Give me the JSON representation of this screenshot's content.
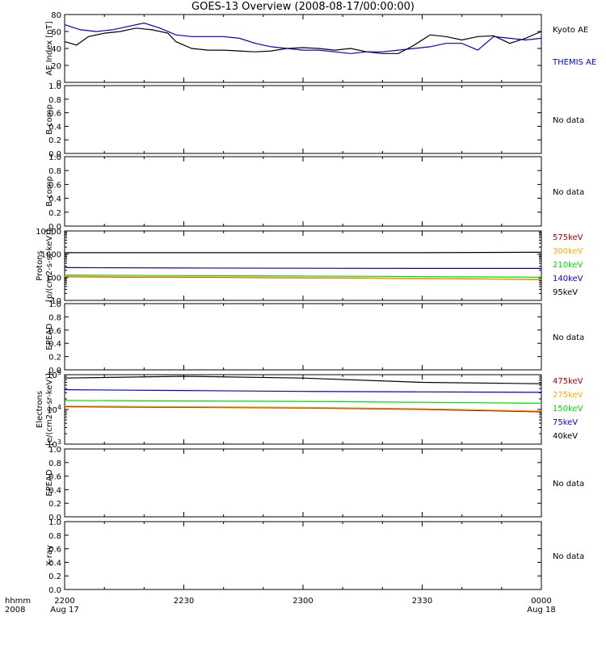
{
  "title": "GOES-13 Overview (2008-08-17/00:00:00)",
  "colors": {
    "black": "#000000",
    "blue": "#0000dd",
    "green": "#00dd00",
    "orange": "#ffaa00",
    "red": "#aa0000",
    "frame": "#000000"
  },
  "x_axis": {
    "header_left_1": "hhmm",
    "header_left_2": "2008",
    "ticks": [
      {
        "label": "2200",
        "sub": "Aug 17",
        "t": 0
      },
      {
        "label": "2230",
        "sub": "",
        "t": 30
      },
      {
        "label": "2300",
        "sub": "",
        "t": 60
      },
      {
        "label": "2330",
        "sub": "",
        "t": 90
      },
      {
        "label": "0000",
        "sub": "Aug 18",
        "t": 120
      }
    ]
  },
  "chart_data": [
    {
      "type": "line",
      "panel": "ae",
      "ylabel": "AE Index [nT]",
      "ylim": [
        0,
        80
      ],
      "yticks": [
        "0",
        "20",
        "40",
        "60",
        "80"
      ],
      "x_unit": "minutes after 2200",
      "series": [
        {
          "name": "Kyoto AE",
          "color": "#000000",
          "x": [
            0,
            3,
            6,
            10,
            14,
            18,
            22,
            26,
            28,
            32,
            36,
            40,
            44,
            48,
            52,
            56,
            60,
            64,
            68,
            72,
            76,
            80,
            84,
            88,
            92,
            96,
            100,
            104,
            108,
            112,
            116,
            120
          ],
          "y": [
            48,
            44,
            54,
            58,
            60,
            64,
            62,
            58,
            48,
            40,
            38,
            38,
            37,
            36,
            37,
            40,
            41,
            40,
            38,
            40,
            36,
            34,
            34,
            44,
            56,
            54,
            50,
            54,
            55,
            46,
            52,
            60
          ]
        },
        {
          "name": "THEMIS AE",
          "color": "#0000dd",
          "x": [
            0,
            4,
            8,
            12,
            16,
            20,
            24,
            28,
            32,
            36,
            40,
            44,
            48,
            52,
            56,
            60,
            64,
            68,
            72,
            76,
            80,
            84,
            88,
            92,
            96,
            100,
            104,
            108,
            112,
            116,
            120
          ],
          "y": [
            68,
            62,
            60,
            62,
            66,
            70,
            64,
            56,
            54,
            54,
            54,
            52,
            46,
            42,
            40,
            38,
            38,
            36,
            34,
            36,
            36,
            38,
            40,
            42,
            46,
            46,
            38,
            54,
            52,
            50,
            52
          ]
        }
      ]
    },
    {
      "type": "line",
      "panel": "b1",
      "ylabel": "B comp",
      "ylim": [
        0,
        1
      ],
      "yticks": [
        "0.0",
        "0.2",
        "0.4",
        "0.6",
        "0.8",
        "1.0"
      ],
      "note": "No data",
      "series": []
    },
    {
      "type": "line",
      "panel": "b2",
      "ylabel": "B comp",
      "ylim": [
        0,
        1
      ],
      "yticks": [
        "0.0",
        "0.2",
        "0.4",
        "0.6",
        "0.8",
        "1.0"
      ],
      "note": "No data",
      "series": []
    },
    {
      "type": "line",
      "panel": "protons",
      "ylabel": "Protons",
      "ylabel2": "[p/(cm2-s-sr-keV)]",
      "yscale": "log",
      "ylim": [
        10,
        10000
      ],
      "yticks": [
        "10",
        "100",
        "1000",
        "10000"
      ],
      "series": [
        {
          "name": "575keV",
          "color": "#aa0000",
          "x": [
            0,
            30,
            60,
            90,
            120
          ],
          "y": [
            105,
            100,
            95,
            88,
            80
          ]
        },
        {
          "name": "300keV",
          "color": "#ffaa00",
          "x": [
            0,
            30,
            60,
            90,
            120
          ],
          "y": [
            110,
            104,
            98,
            90,
            82
          ]
        },
        {
          "name": "210keV",
          "color": "#00dd00",
          "x": [
            0,
            30,
            60,
            90,
            120
          ],
          "y": [
            125,
            118,
            112,
            106,
            100
          ]
        },
        {
          "name": "140keV",
          "color": "#0000dd",
          "x": [
            0,
            30,
            60,
            90,
            120
          ],
          "y": [
            260,
            250,
            245,
            240,
            240
          ]
        },
        {
          "name": "95keV",
          "color": "#000000",
          "x": [
            0,
            30,
            60,
            90,
            120
          ],
          "y": [
            1150,
            1150,
            1150,
            1150,
            1200
          ]
        }
      ]
    },
    {
      "type": "line",
      "panel": "epead1",
      "ylabel": "EPEAD",
      "ylim": [
        0,
        1
      ],
      "yticks": [
        "0.0",
        "0.2",
        "0.4",
        "0.6",
        "0.8",
        "1.0"
      ],
      "note": "No data",
      "series": []
    },
    {
      "type": "line",
      "panel": "electrons",
      "ylabel": "Electrons",
      "ylabel2": "[e/(cm2-s-sr-keV)]",
      "yscale": "log",
      "ylim": [
        1000,
        100000
      ],
      "yticks": [
        "10^3",
        "10^4",
        "10^5"
      ],
      "series": [
        {
          "name": "475keV",
          "color": "#aa0000",
          "x": [
            0,
            30,
            60,
            90,
            120
          ],
          "y": [
            12000,
            11500,
            11000,
            10000,
            8500
          ]
        },
        {
          "name": "275keV",
          "color": "#ffaa00",
          "x": [
            0,
            30,
            60,
            90,
            120
          ],
          "y": [
            12500,
            12000,
            11500,
            10500,
            9000
          ]
        },
        {
          "name": "150keV",
          "color": "#00dd00",
          "x": [
            0,
            30,
            60,
            90,
            120
          ],
          "y": [
            18000,
            17500,
            17000,
            16000,
            15000
          ]
        },
        {
          "name": "75keV",
          "color": "#0000dd",
          "x": [
            0,
            30,
            60,
            90,
            120
          ],
          "y": [
            37000,
            35000,
            33000,
            32000,
            31000
          ]
        },
        {
          "name": "40keV",
          "color": "#000000",
          "x": [
            0,
            30,
            60,
            90,
            120
          ],
          "y": [
            80000,
            90000,
            80000,
            60000,
            55000
          ]
        }
      ]
    },
    {
      "type": "line",
      "panel": "epead2",
      "ylabel": "EPEAD",
      "ylim": [
        0,
        1
      ],
      "yticks": [
        "0.0",
        "0.2",
        "0.4",
        "0.6",
        "0.8",
        "1.0"
      ],
      "note": "No data",
      "series": []
    },
    {
      "type": "line",
      "panel": "xray",
      "ylabel": "X-ray",
      "ylim": [
        0,
        1
      ],
      "yticks": [
        "0.0",
        "0.2",
        "0.4",
        "0.6",
        "0.8",
        "1.0"
      ],
      "note": "No data",
      "series": []
    }
  ]
}
